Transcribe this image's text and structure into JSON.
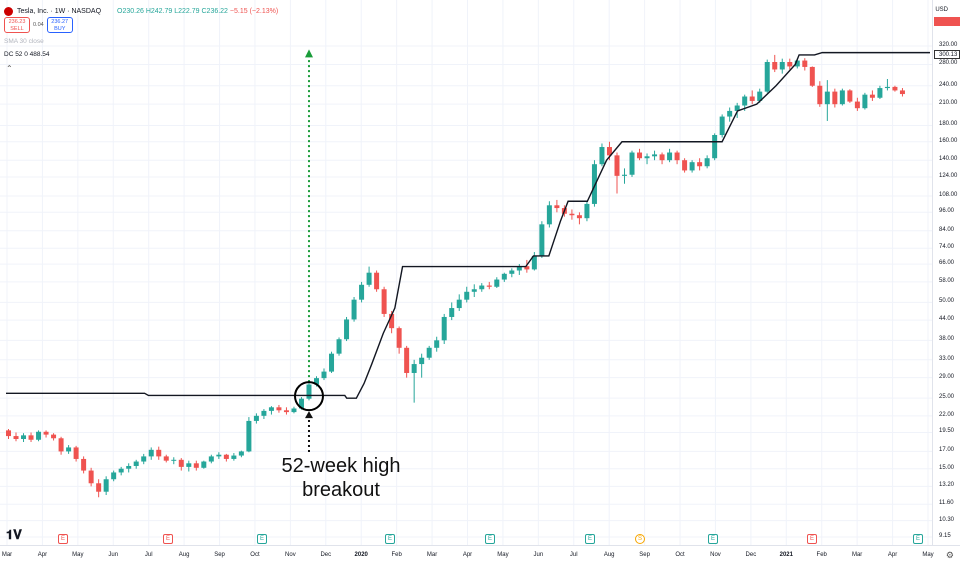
{
  "header": {
    "symbol": "Tesla, Inc. · 1W · NASDAQ",
    "ohlc": "O230.26 H242.79 L222.79 C236.22",
    "change": "−5.15 (−2.13%)"
  },
  "trade": {
    "sell_price": "236.23",
    "sell_label": "SELL",
    "spread": "0.04",
    "buy_price": "236.27",
    "buy_label": "BUY"
  },
  "indicators": {
    "sma": "SMA 30 close",
    "dc": "DC 52 0  488.54"
  },
  "price_axis": {
    "currency": "USD",
    "ticks": [
      {
        "label": "320.00",
        "value": 320
      },
      {
        "label": "280.00",
        "value": 280
      },
      {
        "label": "240.00",
        "value": 240
      },
      {
        "label": "210.00",
        "value": 210
      },
      {
        "label": "180.00",
        "value": 180
      },
      {
        "label": "160.00",
        "value": 160
      },
      {
        "label": "140.00",
        "value": 140
      },
      {
        "label": "124.00",
        "value": 124
      },
      {
        "label": "108.00",
        "value": 108
      },
      {
        "label": "96.00",
        "value": 96
      },
      {
        "label": "84.00",
        "value": 84
      },
      {
        "label": "74.00",
        "value": 74
      },
      {
        "label": "66.00",
        "value": 66
      },
      {
        "label": "58.00",
        "value": 58
      },
      {
        "label": "50.00",
        "value": 50
      },
      {
        "label": "44.00",
        "value": 44
      },
      {
        "label": "38.00",
        "value": 38
      },
      {
        "label": "33.00",
        "value": 33
      },
      {
        "label": "29.00",
        "value": 29
      },
      {
        "label": "25.00",
        "value": 25
      },
      {
        "label": "22.00",
        "value": 22
      },
      {
        "label": "19.50",
        "value": 19.5
      },
      {
        "label": "17.00",
        "value": 17
      },
      {
        "label": "15.00",
        "value": 15
      },
      {
        "label": "13.20",
        "value": 13.2
      },
      {
        "label": "11.60",
        "value": 11.6
      },
      {
        "label": "10.30",
        "value": 10.3
      },
      {
        "label": "9.15",
        "value": 9.15
      }
    ],
    "last_price_label": "300.13",
    "last_price": 300.13
  },
  "time_axis": {
    "labels": [
      "Mar",
      "Apr",
      "May",
      "Jun",
      "Jul",
      "Aug",
      "Sep",
      "Oct",
      "Nov",
      "Dec",
      "2020",
      "Feb",
      "Mar",
      "Apr",
      "May",
      "Jun",
      "Jul",
      "Aug",
      "Sep",
      "Oct",
      "Nov",
      "Dec",
      "2021",
      "Feb",
      "Mar",
      "Apr",
      "May"
    ],
    "year_labels": [
      "2020",
      "2021"
    ]
  },
  "events": [
    {
      "kind": "earnings",
      "glyph": "E",
      "color": "#ef5350"
    },
    {
      "kind": "earnings",
      "glyph": "E",
      "color": "#ef5350"
    },
    {
      "kind": "earnings",
      "glyph": "E",
      "color": "#26a69a"
    },
    {
      "kind": "earnings",
      "glyph": "E",
      "color": "#26a69a"
    },
    {
      "kind": "earnings",
      "glyph": "E",
      "color": "#26a69a"
    },
    {
      "kind": "earnings",
      "glyph": "E",
      "color": "#26a69a"
    },
    {
      "kind": "split",
      "glyph": "S",
      "color": "#f7a600"
    },
    {
      "kind": "earnings",
      "glyph": "E",
      "color": "#26a69a"
    },
    {
      "kind": "earnings",
      "glyph": "E",
      "color": "#ef5350"
    },
    {
      "kind": "earnings",
      "glyph": "E",
      "color": "#26a69a"
    }
  ],
  "annotation": {
    "line1": "52-week high",
    "line2": "breakout"
  },
  "colors": {
    "up": "#26a69a",
    "down": "#ef5350",
    "channel": "#131722",
    "projection": "#1a9c3a"
  },
  "icons": {
    "logo": "tradingview-logo",
    "settings": "gear-icon",
    "collapse": "chevron-up-icon"
  },
  "chart_data": {
    "type": "candlestick",
    "title": "Tesla, Inc. · 1W · NASDAQ",
    "x_unit": "week",
    "y_scale": "log",
    "ylim": [
      9.15,
      330
    ],
    "candles_ohlc": [
      [
        19.8,
        20.0,
        18.6,
        19.0
      ],
      [
        19.0,
        19.5,
        18.3,
        18.6
      ],
      [
        18.6,
        19.4,
        18.2,
        19.1
      ],
      [
        19.1,
        19.5,
        18.2,
        18.5
      ],
      [
        18.5,
        19.8,
        18.3,
        19.6
      ],
      [
        19.6,
        19.8,
        18.8,
        19.2
      ],
      [
        19.2,
        19.4,
        18.4,
        18.7
      ],
      [
        18.7,
        18.9,
        16.6,
        17.0
      ],
      [
        17.0,
        17.8,
        16.7,
        17.5
      ],
      [
        17.5,
        17.7,
        15.8,
        16.1
      ],
      [
        16.1,
        16.4,
        14.5,
        14.8
      ],
      [
        14.8,
        15.1,
        13.2,
        13.5
      ],
      [
        13.5,
        13.9,
        12.2,
        12.7
      ],
      [
        12.7,
        14.2,
        12.4,
        13.9
      ],
      [
        13.9,
        14.8,
        13.7,
        14.6
      ],
      [
        14.6,
        15.2,
        14.3,
        15.0
      ],
      [
        15.0,
        15.6,
        14.6,
        15.3
      ],
      [
        15.3,
        16.0,
        15.0,
        15.8
      ],
      [
        15.8,
        16.7,
        15.5,
        16.4
      ],
      [
        16.4,
        17.5,
        16.0,
        17.2
      ],
      [
        17.2,
        17.6,
        16.0,
        16.4
      ],
      [
        16.4,
        16.6,
        15.7,
        15.9
      ],
      [
        15.9,
        16.3,
        15.5,
        16.0
      ],
      [
        16.0,
        16.2,
        14.8,
        15.2
      ],
      [
        15.2,
        15.9,
        14.7,
        15.6
      ],
      [
        15.6,
        15.9,
        14.8,
        15.1
      ],
      [
        15.1,
        15.9,
        15.0,
        15.8
      ],
      [
        15.8,
        16.6,
        15.6,
        16.4
      ],
      [
        16.4,
        16.9,
        16.1,
        16.6
      ],
      [
        16.6,
        16.7,
        15.8,
        16.1
      ],
      [
        16.1,
        16.8,
        15.9,
        16.5
      ],
      [
        16.5,
        17.1,
        16.3,
        17.0
      ],
      [
        17.0,
        21.8,
        16.9,
        21.2
      ],
      [
        21.2,
        22.4,
        20.8,
        22.0
      ],
      [
        22.0,
        23.1,
        21.5,
        22.8
      ],
      [
        22.8,
        23.6,
        22.2,
        23.4
      ],
      [
        23.4,
        23.8,
        22.5,
        22.9
      ],
      [
        22.9,
        23.4,
        22.2,
        22.6
      ],
      [
        22.6,
        23.5,
        22.4,
        23.2
      ],
      [
        23.2,
        25.2,
        23.0,
        24.9
      ],
      [
        24.9,
        28.0,
        24.6,
        27.6
      ],
      [
        27.6,
        29.3,
        27.2,
        28.9
      ],
      [
        28.9,
        31.0,
        28.5,
        30.3
      ],
      [
        30.3,
        35.0,
        30.0,
        34.5
      ],
      [
        34.5,
        38.8,
        34.0,
        38.3
      ],
      [
        38.3,
        45.0,
        37.8,
        44.2
      ],
      [
        44.2,
        52.0,
        43.5,
        51.0
      ],
      [
        51.0,
        58.0,
        50.0,
        56.8
      ],
      [
        56.8,
        64.8,
        56.0,
        62.0
      ],
      [
        62.0,
        63.0,
        54.0,
        55.0
      ],
      [
        55.0,
        56.0,
        45.0,
        46.0
      ],
      [
        46.0,
        47.0,
        40.0,
        41.5
      ],
      [
        41.5,
        42.0,
        34.5,
        36.0
      ],
      [
        36.0,
        36.5,
        29.0,
        30.0
      ],
      [
        30.0,
        33.0,
        24.2,
        32.0
      ],
      [
        32.0,
        34.5,
        29.0,
        33.5
      ],
      [
        33.5,
        36.5,
        33.0,
        36.0
      ],
      [
        36.0,
        39.0,
        35.0,
        38.0
      ],
      [
        38.0,
        46.0,
        37.0,
        45.0
      ],
      [
        45.0,
        50.0,
        44.0,
        48.0
      ],
      [
        48.0,
        53.0,
        47.0,
        51.0
      ],
      [
        51.0,
        56.0,
        50.0,
        54.0
      ],
      [
        54.0,
        57.0,
        52.0,
        55.0
      ],
      [
        55.0,
        57.5,
        54.0,
        56.5
      ],
      [
        56.5,
        58.0,
        55.0,
        56.0
      ],
      [
        56.0,
        60.0,
        55.5,
        59.0
      ],
      [
        59.0,
        62.0,
        58.0,
        61.5
      ],
      [
        61.5,
        64.0,
        60.0,
        63.0
      ],
      [
        63.0,
        66.0,
        61.0,
        65.0
      ],
      [
        65.0,
        68.0,
        62.0,
        63.5
      ],
      [
        63.5,
        72.0,
        63.0,
        70.0
      ],
      [
        70.0,
        90.0,
        69.0,
        88.0
      ],
      [
        88.0,
        104.0,
        86.0,
        101.0
      ],
      [
        101.0,
        105.0,
        96.0,
        99.0
      ],
      [
        99.0,
        101.0,
        93.0,
        95.0
      ],
      [
        95.0,
        98.0,
        91.0,
        94.0
      ],
      [
        94.0,
        96.0,
        88.0,
        92.0
      ],
      [
        92.0,
        104.0,
        90.0,
        102.0
      ],
      [
        102.0,
        140.0,
        100.0,
        136.0
      ],
      [
        136.0,
        158.0,
        134.0,
        154.0
      ],
      [
        154.0,
        160.0,
        140.0,
        145.0
      ],
      [
        145.0,
        148.0,
        110.0,
        125.0
      ],
      [
        125.0,
        132.0,
        118.0,
        126.0
      ],
      [
        126.0,
        150.0,
        124.0,
        148.0
      ],
      [
        148.0,
        152.0,
        140.0,
        142.0
      ],
      [
        142.0,
        147.0,
        136.0,
        144.0
      ],
      [
        144.0,
        150.0,
        140.0,
        146.0
      ],
      [
        146.0,
        148.0,
        136.0,
        140.0
      ],
      [
        140.0,
        152.0,
        138.0,
        148.0
      ],
      [
        148.0,
        150.0,
        136.0,
        140.0
      ],
      [
        140.0,
        142.0,
        128.0,
        130.0
      ],
      [
        130.0,
        140.0,
        128.0,
        138.0
      ],
      [
        138.0,
        142.0,
        130.0,
        134.0
      ],
      [
        134.0,
        145.0,
        132.0,
        142.0
      ],
      [
        142.0,
        170.0,
        140.0,
        168.0
      ],
      [
        168.0,
        195.0,
        165.0,
        192.0
      ],
      [
        192.0,
        205.0,
        185.0,
        200.0
      ],
      [
        200.0,
        212.0,
        190.0,
        208.0
      ],
      [
        208.0,
        225.0,
        200.0,
        222.0
      ],
      [
        222.0,
        232.0,
        210.0,
        215.0
      ],
      [
        215.0,
        235.0,
        212.0,
        230.0
      ],
      [
        230.0,
        290.0,
        228.0,
        285.0
      ],
      [
        285.0,
        300.0,
        265.0,
        270.0
      ],
      [
        270.0,
        292.0,
        262.0,
        285.0
      ],
      [
        285.0,
        292.0,
        270.0,
        276.0
      ],
      [
        276.0,
        292.0,
        272.0,
        288.0
      ],
      [
        288.0,
        293.0,
        268.0,
        275.0
      ],
      [
        275.0,
        276.0,
        238.0,
        240.0
      ],
      [
        240.0,
        248.0,
        206.0,
        210.0
      ],
      [
        210.0,
        250.0,
        186.0,
        230.0
      ],
      [
        230.0,
        235.0,
        205.0,
        210.0
      ],
      [
        210.0,
        235.0,
        208.0,
        232.0
      ],
      [
        232.0,
        234.0,
        212.0,
        214.0
      ],
      [
        214.0,
        220.0,
        200.0,
        204.0
      ],
      [
        204.0,
        228.0,
        202.0,
        225.0
      ],
      [
        225.0,
        232.0,
        215.0,
        220.0
      ],
      [
        220.0,
        240.0,
        218.0,
        236.0
      ],
      [
        236.0,
        252.0,
        232.0,
        238.0
      ],
      [
        238.0,
        240.0,
        230.0,
        232.0
      ],
      [
        232.0,
        236.0,
        222.0,
        226.0
      ]
    ],
    "donchian_upper": [
      [
        0,
        25.9
      ],
      [
        36,
        25.9
      ],
      [
        37,
        25.5
      ],
      [
        88,
        25.5
      ],
      [
        88.5,
        25.0
      ],
      [
        91,
        25.0
      ],
      [
        93,
        27.8
      ],
      [
        95,
        32.0
      ],
      [
        98,
        40.0
      ],
      [
        101,
        48.0
      ],
      [
        103,
        64.8
      ],
      [
        135,
        64.8
      ],
      [
        137,
        70.0
      ],
      [
        141,
        70.0
      ],
      [
        144,
        90.0
      ],
      [
        146,
        104.0
      ],
      [
        151,
        104.0
      ],
      [
        156,
        140.0
      ],
      [
        160,
        160.0
      ],
      [
        186,
        160.0
      ],
      [
        190,
        200.0
      ],
      [
        195,
        210.0
      ],
      [
        200,
        240.0
      ],
      [
        205,
        280.0
      ],
      [
        206,
        300.0
      ],
      [
        210,
        300.0
      ],
      [
        212,
        305.0
      ],
      [
        240,
        305.0
      ]
    ],
    "projection_arrow": {
      "from": 25.0,
      "to": 310.0
    },
    "breakout_level": 25.0
  }
}
